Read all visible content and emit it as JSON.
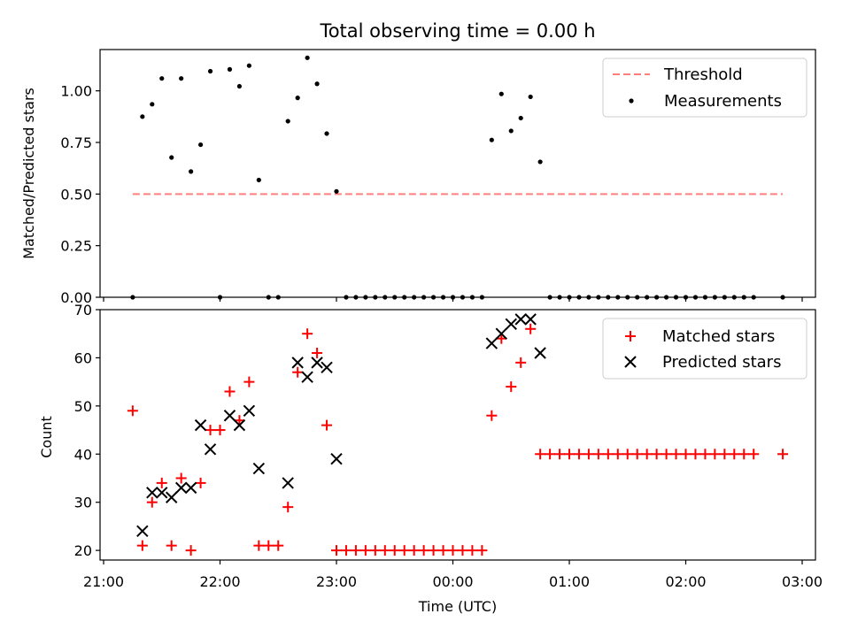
{
  "figure": {
    "title": "Total observing time = 0.00 h"
  },
  "chart_data": [
    {
      "type": "scatter",
      "panel": "top",
      "xlabel": "",
      "ylabel": "Matched/Predicted stars",
      "x_ticks": [
        "21:00",
        "22:00",
        "23:00",
        "00:00",
        "01:00",
        "02:00",
        "03:00"
      ],
      "y_ticks": [
        "0.00",
        "0.25",
        "0.50",
        "0.75",
        "1.00"
      ],
      "ylim": [
        0,
        1.2
      ],
      "legend_position": "top-right",
      "threshold": {
        "name": "Threshold",
        "value": 0.5,
        "x_start": "21:15",
        "x_end": "02:50",
        "color": "#ff7f7f"
      },
      "series": [
        {
          "name": "Measurements",
          "color": "#000000",
          "x": [
            "21:15",
            "21:20",
            "21:25",
            "21:30",
            "21:35",
            "21:40",
            "21:45",
            "21:50",
            "21:55",
            "22:00",
            "22:05",
            "22:10",
            "22:15",
            "22:20",
            "22:25",
            "22:30",
            "22:35",
            "22:40",
            "22:45",
            "22:50",
            "22:55",
            "23:00",
            "23:05",
            "23:10",
            "23:15",
            "23:20",
            "23:25",
            "23:30",
            "23:35",
            "23:40",
            "23:45",
            "23:50",
            "23:55",
            "00:00",
            "00:05",
            "00:10",
            "00:15",
            "00:20",
            "00:25",
            "00:30",
            "00:35",
            "00:40",
            "00:45",
            "00:50",
            "00:55",
            "01:00",
            "01:05",
            "01:10",
            "01:15",
            "01:20",
            "01:25",
            "01:30",
            "01:35",
            "01:40",
            "01:45",
            "01:50",
            "01:55",
            "02:00",
            "02:05",
            "02:10",
            "02:15",
            "02:20",
            "02:25",
            "02:30",
            "02:35",
            "02:50"
          ],
          "y": [
            0.0,
            0.875,
            0.935,
            1.06,
            0.677,
            1.06,
            0.609,
            0.739,
            1.095,
            0.0,
            1.104,
            1.022,
            1.122,
            0.568,
            0.0,
            0.0,
            0.853,
            0.966,
            1.16,
            1.034,
            0.793,
            0.513,
            0.0,
            0.0,
            0.0,
            0.0,
            0.0,
            0.0,
            0.0,
            0.0,
            0.0,
            0.0,
            0.0,
            0.0,
            0.0,
            0.0,
            0.0,
            0.762,
            0.985,
            0.806,
            0.868,
            0.971,
            0.656,
            0.0,
            0.0,
            0.0,
            0.0,
            0.0,
            0.0,
            0.0,
            0.0,
            0.0,
            0.0,
            0.0,
            0.0,
            0.0,
            0.0,
            0.0,
            0.0,
            0.0,
            0.0,
            0.0,
            0.0,
            0.0,
            0.0,
            0.0
          ]
        }
      ]
    },
    {
      "type": "scatter",
      "panel": "bottom",
      "xlabel": "Time (UTC)",
      "ylabel": "Count",
      "x_ticks": [
        "21:00",
        "22:00",
        "23:00",
        "00:00",
        "01:00",
        "02:00",
        "03:00"
      ],
      "y_ticks": [
        "20",
        "30",
        "40",
        "50",
        "60",
        "70"
      ],
      "ylim": [
        18,
        70
      ],
      "legend_position": "top-right",
      "series": [
        {
          "name": "Matched stars",
          "marker": "+",
          "color": "#ff0000",
          "x": [
            "21:15",
            "21:20",
            "21:25",
            "21:30",
            "21:35",
            "21:40",
            "21:45",
            "21:50",
            "21:55",
            "22:00",
            "22:05",
            "22:10",
            "22:15",
            "22:20",
            "22:25",
            "22:30",
            "22:35",
            "22:40",
            "22:45",
            "22:50",
            "22:55",
            "23:00",
            "23:05",
            "23:10",
            "23:15",
            "23:20",
            "23:25",
            "23:30",
            "23:35",
            "23:40",
            "23:45",
            "23:50",
            "23:55",
            "00:00",
            "00:05",
            "00:10",
            "00:15",
            "00:20",
            "00:25",
            "00:30",
            "00:35",
            "00:40",
            "00:45",
            "00:50",
            "00:55",
            "01:00",
            "01:05",
            "01:10",
            "01:15",
            "01:20",
            "01:25",
            "01:30",
            "01:35",
            "01:40",
            "01:45",
            "01:50",
            "01:55",
            "02:00",
            "02:05",
            "02:10",
            "02:15",
            "02:20",
            "02:25",
            "02:30",
            "02:35",
            "02:50"
          ],
          "y": [
            49,
            21,
            30,
            34,
            21,
            35,
            20,
            34,
            45,
            45,
            53,
            47,
            55,
            21,
            21,
            21,
            29,
            57,
            65,
            61,
            46,
            20,
            20,
            20,
            20,
            20,
            20,
            20,
            20,
            20,
            20,
            20,
            20,
            20,
            20,
            20,
            20,
            48,
            64,
            54,
            59,
            66,
            40,
            40,
            40,
            40,
            40,
            40,
            40,
            40,
            40,
            40,
            40,
            40,
            40,
            40,
            40,
            40,
            40,
            40,
            40,
            40,
            40,
            40,
            40,
            40
          ]
        },
        {
          "name": "Predicted stars",
          "marker": "x",
          "color": "#000000",
          "x": [
            "21:20",
            "21:25",
            "21:30",
            "21:35",
            "21:40",
            "21:45",
            "21:50",
            "21:55",
            "22:05",
            "22:10",
            "22:15",
            "22:20",
            "22:35",
            "22:40",
            "22:45",
            "22:50",
            "22:55",
            "23:00",
            "00:20",
            "00:25",
            "00:30",
            "00:35",
            "00:40",
            "00:45"
          ],
          "y": [
            24,
            32,
            32,
            31,
            33,
            33,
            46,
            41,
            48,
            46,
            49,
            37,
            34,
            59,
            56,
            59,
            58,
            39,
            63,
            65,
            67,
            68,
            68,
            61
          ]
        }
      ]
    }
  ]
}
